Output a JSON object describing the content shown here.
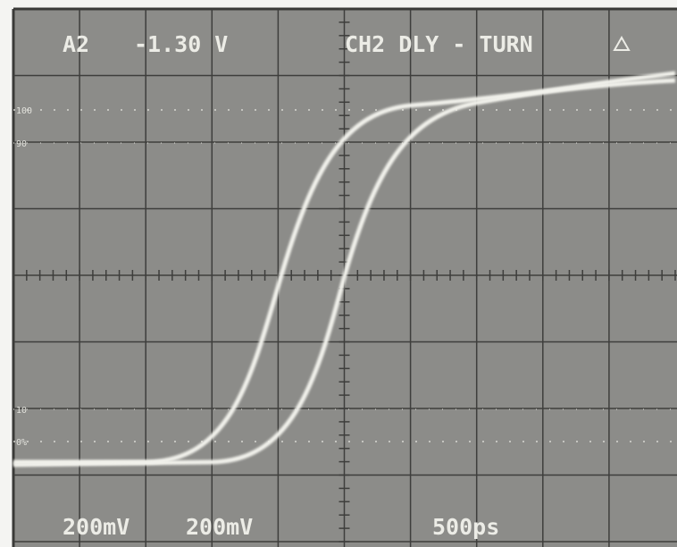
{
  "header": {
    "channel": "A2",
    "level": "-1.30 V",
    "mode": "CH2 DLY - TURN"
  },
  "scale_labels": [
    "100",
    "90",
    "10",
    "0%"
  ],
  "footer": {
    "ch1_scale": "200mV",
    "ch2_scale": "200mV",
    "timebase": "500ps"
  }
}
